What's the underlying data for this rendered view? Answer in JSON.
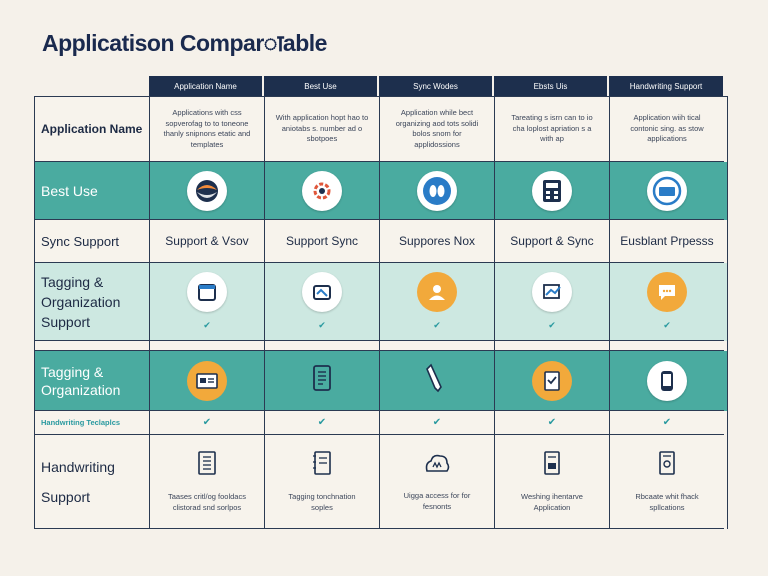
{
  "title": "Applicatison Comparाable",
  "headers": [
    "Application Name",
    "Best Use",
    "Sync Wodes",
    "Ebsts Uis",
    "Handwriting Support"
  ],
  "rows": {
    "app_name": {
      "label": "Application Name",
      "cells": [
        "Applications with css sopverofag to to toneone thanly snipnons etatic and templates",
        "With application hopt hao to aniotabs s. number ad o sbotpoes",
        "Application while bect organizing aod tots solidi bolos snom for applidossions",
        "Tareating s isrn can to io cha loplost apriation s a with ap",
        "Application wiih tical contonic sing. as stow applications"
      ]
    },
    "best_use": {
      "label": "Best Use"
    },
    "sync_support": {
      "label": "Sync Support",
      "cells": [
        "Support & Vsov",
        "Support Sync",
        "Suppores Nox",
        "Support & Sync",
        "Eusblant Prpesss"
      ]
    },
    "tagging_1": {
      "label": "Tagging & Organization Support"
    },
    "tagging_2": {
      "label": "Tagging & Organization"
    },
    "handwriting_tech": {
      "label": "Handwriting Teclaplcs"
    },
    "handwriting_support": {
      "label_line1": "Handwriting",
      "label_line2": "Support",
      "cells": [
        "Taases critl/og fooldacs clistorad snd sorlpos",
        "Tagging tonchnation soples",
        "Uigga access for for fesnonts",
        "Weshing ihentarve Application",
        "Rbcaate whit fhack spllcations"
      ]
    }
  },
  "check_glyph": "✔",
  "colors": {
    "teal": "#4aaba0",
    "navy": "#1d2f4d",
    "orange": "#f2a93b",
    "mint": "#cde8e1"
  }
}
